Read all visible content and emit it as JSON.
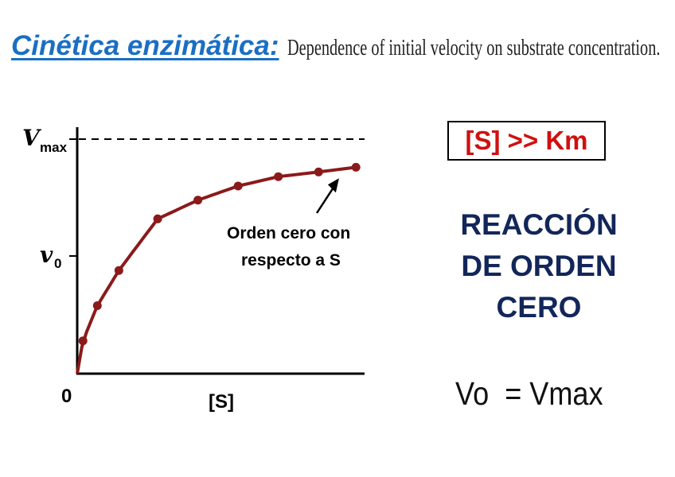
{
  "header": {
    "title": "Cinética enzimática:",
    "subtitle": "Dependence of initial velocity on substrate concentration."
  },
  "colors": {
    "title": "#1a6fc4",
    "curve": "#8b1a1a",
    "emphasis_red": "#d01010",
    "navy": "#12265a"
  },
  "chart_data": {
    "type": "line",
    "title": "",
    "xlabel": "[S]",
    "ylabel": "v",
    "ylabel_subscript": "0",
    "ymax_label": "V",
    "ymax_subscript": "max",
    "origin_label": "0",
    "xlim": [
      0,
      1
    ],
    "ylim": [
      0,
      1
    ],
    "vmax": 1,
    "km": 0.13,
    "series": [
      {
        "x": [
          0.02,
          0.07,
          0.145,
          0.28,
          0.42,
          0.56,
          0.7,
          0.84,
          0.97
        ],
        "y": [
          0.14,
          0.29,
          0.44,
          0.66,
          0.74,
          0.8,
          0.84,
          0.86,
          0.88
        ]
      }
    ],
    "vmax_line": "dashed",
    "annotation": {
      "lines": [
        "Orden cero con",
        "respecto a S"
      ],
      "arrow_to": [
        0.9,
        0.86
      ]
    }
  },
  "panel": {
    "km_label": "[S] >> Km",
    "reaction_lines": [
      "REACCIÓN",
      "DE ORDEN",
      "CERO"
    ],
    "formula": "Vo  = Vmax"
  }
}
